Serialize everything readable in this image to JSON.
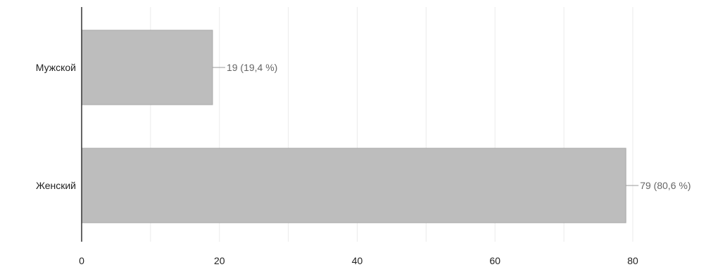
{
  "chart_data": {
    "type": "bar",
    "orientation": "horizontal",
    "categories": [
      "Мужской",
      "Женский"
    ],
    "values": [
      19,
      79
    ],
    "data_labels": [
      "19 (19,4 %)",
      "79 (80,6 %)"
    ],
    "xlim": [
      0,
      80
    ],
    "x_ticks": [
      0,
      20,
      40,
      60,
      80
    ],
    "x_minor_grid": [
      10,
      30,
      50,
      70
    ],
    "grid": true,
    "legend": "none",
    "colors": {
      "bar": "#bdbdbd",
      "bar_stroke": "#a8a8a8",
      "grid": "#ebebeb",
      "axis": "#333333",
      "leader": "#999999"
    }
  }
}
